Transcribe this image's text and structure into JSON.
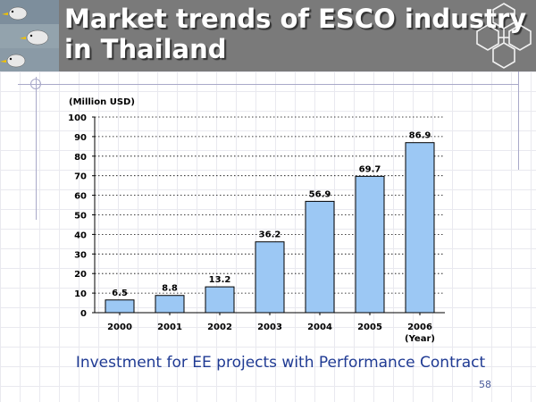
{
  "slide": {
    "title_line1": "Market trends of ESCO industry",
    "title_line2": "in Thailand",
    "caption": "Investment for EE projects with Performance Contract",
    "page_number": "58"
  },
  "colors": {
    "header_bg": "#7a7a7a",
    "bar_fill": "#9cc8f4",
    "bar_stroke": "#000000",
    "caption": "#1f3a93"
  },
  "chart_data": {
    "type": "bar",
    "title": "",
    "ylabel": "(Million USD)",
    "xlabel": "(Year)",
    "categories": [
      "2000",
      "2001",
      "2002",
      "2003",
      "2004",
      "2005",
      "2006"
    ],
    "values": [
      6.5,
      8.8,
      13.2,
      36.2,
      56.9,
      69.7,
      86.9
    ],
    "value_labels": [
      "6.5",
      "8.8",
      "13.2",
      "36.2",
      "56.9",
      "69.7",
      "86.9"
    ],
    "ylim": [
      0,
      100
    ],
    "yticks": [
      "0",
      "10",
      "20",
      "30",
      "40",
      "50",
      "60",
      "70",
      "80",
      "90",
      "100"
    ],
    "grid": true
  }
}
